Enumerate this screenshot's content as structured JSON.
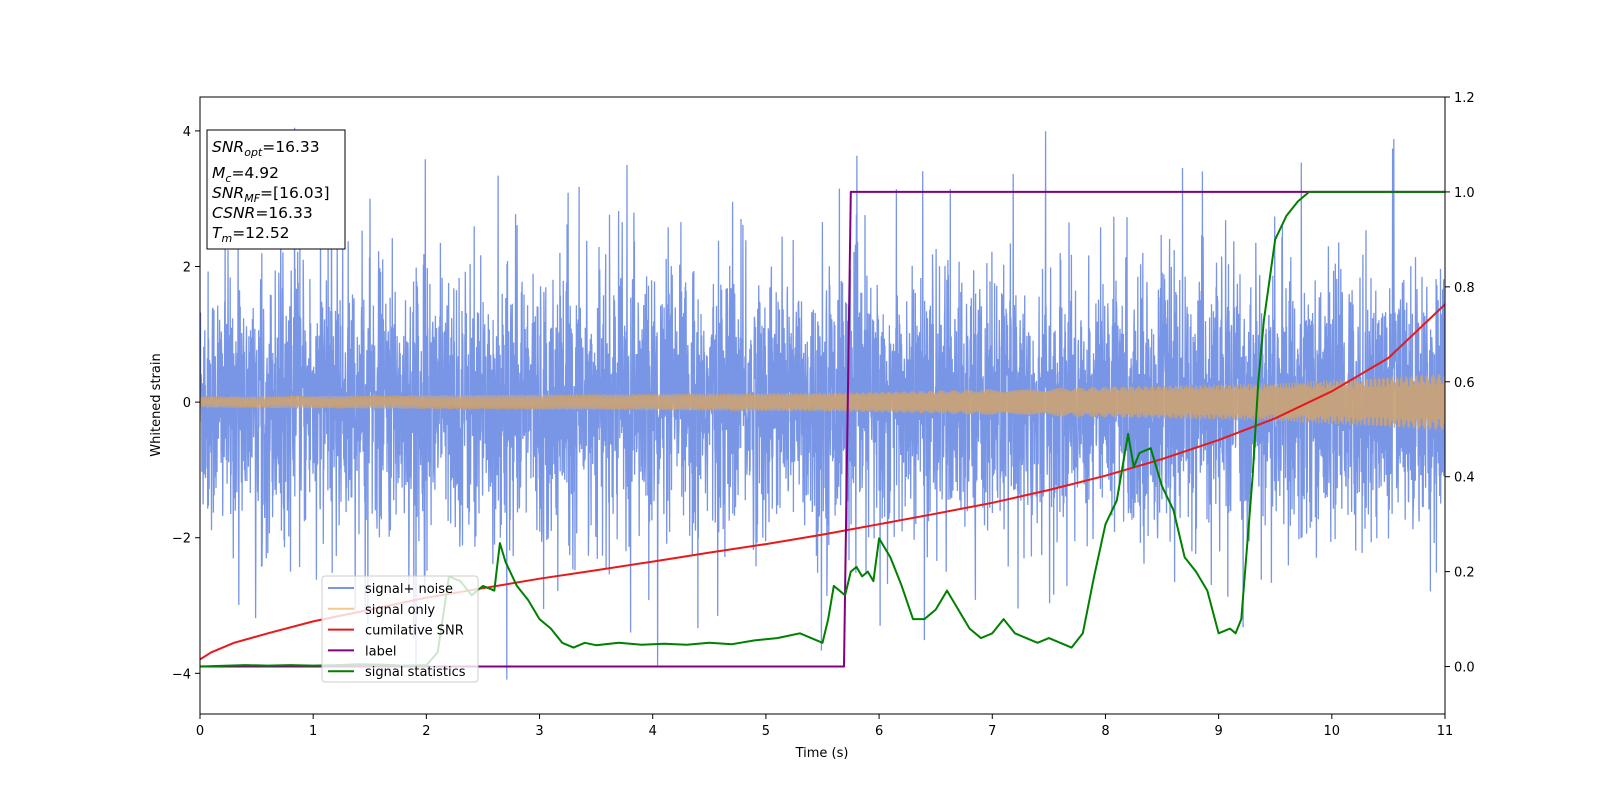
{
  "chart_data": {
    "type": "line",
    "xlabel": "Time (s)",
    "ylabel": "Whitened strain",
    "xlim": [
      0,
      11
    ],
    "ylim_left": [
      -4.6,
      4.5
    ],
    "ylim_right": [
      -0.1,
      1.2
    ],
    "x_ticks": [
      "0",
      "1",
      "2",
      "3",
      "4",
      "5",
      "6",
      "7",
      "8",
      "9",
      "10",
      "11"
    ],
    "y_left_ticks": [
      "4",
      "2",
      "0",
      "−2",
      "−4"
    ],
    "y_right_ticks": [
      "1.2",
      "1.0",
      "0.8",
      "0.6",
      "0.4",
      "0.2",
      "0.0"
    ],
    "legend_location": "lower-left",
    "annotation": {
      "snr_opt": {
        "main": "SNR",
        "sub": "opt",
        "value": "=16.33"
      },
      "mc": {
        "main": "M",
        "sub": "c",
        "value": "=4.92"
      },
      "snr_mf": {
        "main": "SNR",
        "sub": "MF",
        "value": "=[16.03]"
      },
      "csnr": {
        "main": "CSNR",
        "sub": "",
        "value": "=16.33"
      },
      "tm": {
        "main": "T",
        "sub": "m",
        "value": "=12.52"
      }
    },
    "series": [
      {
        "name": "signal+ noise",
        "axis": "left",
        "color": "#7895e6",
        "kind": "noise",
        "typical_abs": 2.3,
        "peak_abs": 4.1
      },
      {
        "name": "signal only",
        "axis": "left",
        "color": "#c8a27a",
        "legend_color": "#f5c98a",
        "kind": "chirp",
        "amplitude_points": [
          [
            0,
            0.08
          ],
          [
            5.7,
            0.14
          ],
          [
            9.5,
            0.28
          ],
          [
            11,
            0.42
          ]
        ]
      },
      {
        "name": "cumilative SNR",
        "axis": "right",
        "color": "#e8191b",
        "kind": "line",
        "x": [
          0,
          0.1,
          0.3,
          0.6,
          1,
          1.5,
          2,
          2.5,
          3,
          3.5,
          4,
          4.5,
          5,
          5.5,
          6,
          6.5,
          7,
          7.5,
          8,
          8.5,
          9,
          9.5,
          10,
          10.5,
          11
        ],
        "y": [
          0.015,
          0.03,
          0.05,
          0.07,
          0.095,
          0.12,
          0.145,
          0.165,
          0.185,
          0.203,
          0.221,
          0.24,
          0.258,
          0.278,
          0.3,
          0.322,
          0.345,
          0.372,
          0.402,
          0.437,
          0.477,
          0.523,
          0.58,
          0.65,
          0.763
        ]
      },
      {
        "name": "label",
        "axis": "right",
        "color": "#800080",
        "kind": "line",
        "x": [
          0,
          5.69,
          5.75,
          11
        ],
        "y": [
          0,
          0,
          1,
          1
        ]
      },
      {
        "name": "signal statistics",
        "axis": "right",
        "color": "#008000",
        "kind": "line",
        "x": [
          0,
          0.4,
          0.6,
          0.8,
          1.0,
          1.2,
          1.4,
          1.6,
          1.8,
          2.0,
          2.1,
          2.2,
          2.3,
          2.4,
          2.5,
          2.6,
          2.65,
          2.7,
          2.8,
          2.9,
          3.0,
          3.1,
          3.2,
          3.3,
          3.4,
          3.5,
          3.7,
          3.9,
          4.1,
          4.3,
          4.5,
          4.7,
          4.9,
          5.1,
          5.3,
          5.5,
          5.55,
          5.6,
          5.65,
          5.7,
          5.75,
          5.8,
          5.85,
          5.9,
          5.95,
          6.0,
          6.1,
          6.2,
          6.3,
          6.4,
          6.5,
          6.6,
          6.7,
          6.8,
          6.9,
          7.0,
          7.1,
          7.2,
          7.3,
          7.4,
          7.5,
          7.6,
          7.7,
          7.8,
          7.9,
          8.0,
          8.1,
          8.2,
          8.25,
          8.3,
          8.4,
          8.5,
          8.6,
          8.7,
          8.8,
          8.9,
          9.0,
          9.1,
          9.15,
          9.2,
          9.3,
          9.35,
          9.4,
          9.5,
          9.6,
          9.7,
          9.8,
          9.9,
          10.0,
          10.5,
          11
        ],
        "y": [
          0.0,
          0.003,
          0.002,
          0.003,
          0.002,
          0.003,
          0.005,
          0.004,
          0.002,
          0.003,
          0.03,
          0.19,
          0.18,
          0.15,
          0.17,
          0.16,
          0.26,
          0.22,
          0.17,
          0.14,
          0.1,
          0.08,
          0.05,
          0.04,
          0.05,
          0.045,
          0.05,
          0.046,
          0.048,
          0.046,
          0.05,
          0.047,
          0.055,
          0.06,
          0.07,
          0.05,
          0.1,
          0.17,
          0.16,
          0.15,
          0.2,
          0.21,
          0.19,
          0.2,
          0.18,
          0.27,
          0.23,
          0.17,
          0.1,
          0.1,
          0.12,
          0.16,
          0.12,
          0.08,
          0.06,
          0.07,
          0.1,
          0.07,
          0.06,
          0.05,
          0.06,
          0.05,
          0.04,
          0.07,
          0.19,
          0.3,
          0.35,
          0.49,
          0.42,
          0.45,
          0.46,
          0.38,
          0.33,
          0.23,
          0.2,
          0.16,
          0.07,
          0.08,
          0.07,
          0.1,
          0.4,
          0.6,
          0.73,
          0.9,
          0.95,
          0.98,
          1.0,
          1.0,
          1.0,
          1.0,
          1.0
        ]
      }
    ]
  }
}
